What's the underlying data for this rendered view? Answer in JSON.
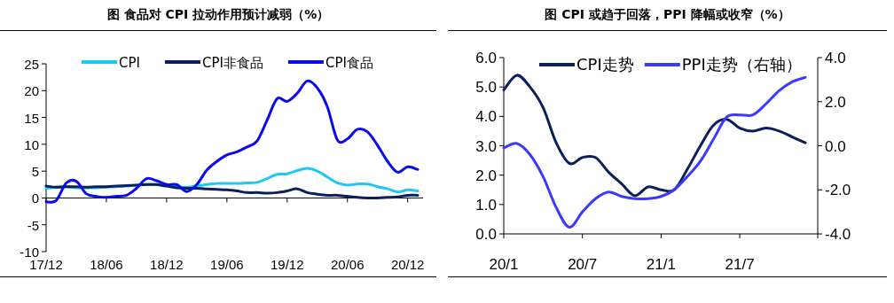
{
  "chart_data": [
    {
      "type": "line",
      "title": "图  食品对 CPI 拉动作用预计减弱（%）",
      "legend": "top",
      "categories": [
        "17/12",
        null,
        null,
        null,
        null,
        null,
        "18/06",
        null,
        null,
        null,
        null,
        null,
        "18/12",
        null,
        null,
        null,
        null,
        null,
        "19/06",
        null,
        null,
        null,
        null,
        null,
        "19/12",
        null,
        null,
        null,
        null,
        null,
        "20/06",
        null,
        null,
        null,
        null,
        null,
        "20/12",
        null
      ],
      "ylim": [
        -10,
        25
      ],
      "yticks": [
        -10,
        -5,
        0,
        5,
        10,
        15,
        20,
        25
      ],
      "series": [
        {
          "name": "CPI",
          "color": "#1ec8f5",
          "values": [
            1.8,
            2.0,
            2.1,
            1.9,
            1.9,
            1.9,
            2.0,
            2.1,
            2.2,
            2.4,
            2.5,
            2.5,
            2.3,
            2.1,
            2.0,
            2.2,
            2.5,
            2.7,
            2.7,
            2.7,
            2.8,
            2.9,
            3.6,
            4.4,
            4.5,
            5.1,
            5.5,
            5.0,
            3.9,
            2.8,
            2.4,
            2.6,
            2.6,
            2.1,
            1.7,
            1.1,
            1.5,
            1.3
          ]
        },
        {
          "name": "CPI非食品",
          "color": "#0c1f5a",
          "values": [
            2.2,
            2.0,
            2.1,
            2.1,
            2.0,
            2.1,
            2.1,
            2.2,
            2.3,
            2.4,
            2.5,
            2.5,
            2.2,
            1.9,
            1.8,
            1.8,
            1.7,
            1.6,
            1.5,
            1.3,
            1.0,
            1.0,
            0.9,
            1.0,
            1.3,
            1.7,
            1.0,
            0.7,
            0.5,
            0.5,
            0.3,
            0.1,
            0.0,
            0.0,
            0.1,
            0.2,
            0.5,
            0.5
          ]
        },
        {
          "name": "CPI食品",
          "color": "#0a0af0",
          "values": [
            -0.7,
            -0.5,
            2.8,
            3.1,
            0.8,
            0.3,
            0.1,
            0.3,
            0.5,
            1.8,
            3.6,
            3.2,
            2.5,
            2.5,
            1.2,
            2.5,
            5.2,
            6.8,
            8.0,
            8.6,
            9.5,
            10.6,
            14.5,
            18.5,
            18.0,
            19.5,
            21.8,
            20.5,
            17.0,
            10.8,
            11.0,
            12.8,
            12.3,
            9.8,
            6.8,
            4.8,
            5.8,
            5.3
          ]
        }
      ]
    },
    {
      "type": "line",
      "title": "图  CPI 或趋于回落，PPI 降幅或收窄（%）",
      "legend": "top",
      "categories": [
        "20/1",
        null,
        null,
        null,
        null,
        null,
        "20/7",
        null,
        null,
        null,
        null,
        null,
        "21/1",
        null,
        null,
        null,
        null,
        null,
        "21/7",
        null,
        null,
        null,
        null,
        null
      ],
      "ylim": [
        0,
        6
      ],
      "yticks": [
        {
          "value": 0,
          "label": "0.0"
        },
        {
          "value": 1,
          "label": "1.0"
        },
        {
          "value": 2,
          "label": "2.0"
        },
        {
          "value": 3,
          "label": "3.0"
        },
        {
          "value": 4,
          "label": "4.0"
        },
        {
          "value": 5,
          "label": "5.0"
        },
        {
          "value": 6,
          "label": "6.0"
        }
      ],
      "y2lim": [
        -4,
        4
      ],
      "y2ticks": [
        {
          "value": -4,
          "label": "-4.0"
        },
        {
          "value": -2,
          "label": "-2.0"
        },
        {
          "value": 0,
          "label": "0.0"
        },
        {
          "value": 2,
          "label": "2.0"
        },
        {
          "value": 4,
          "label": "4.0"
        }
      ],
      "series": [
        {
          "name": "CPI走势",
          "color": "#0c1f5a",
          "values": [
            4.9,
            5.4,
            5.0,
            4.3,
            3.1,
            2.4,
            2.6,
            2.6,
            2.1,
            1.7,
            1.3,
            1.6,
            1.5,
            1.5,
            2.2,
            3.0,
            3.7,
            3.9,
            3.6,
            3.5,
            3.6,
            3.5,
            3.3,
            3.1
          ]
        },
        {
          "name": "PPI走势（右轴）",
          "color": "#3a3aff",
          "axis": "y2",
          "values": [
            -0.1,
            0.1,
            -0.4,
            -1.4,
            -2.8,
            -3.7,
            -3.0,
            -2.4,
            -2.1,
            -2.3,
            -2.4,
            -2.4,
            -2.3,
            -2.0,
            -1.4,
            -0.7,
            0.3,
            1.3,
            1.4,
            1.4,
            1.9,
            2.5,
            2.9,
            3.1
          ]
        }
      ]
    }
  ]
}
